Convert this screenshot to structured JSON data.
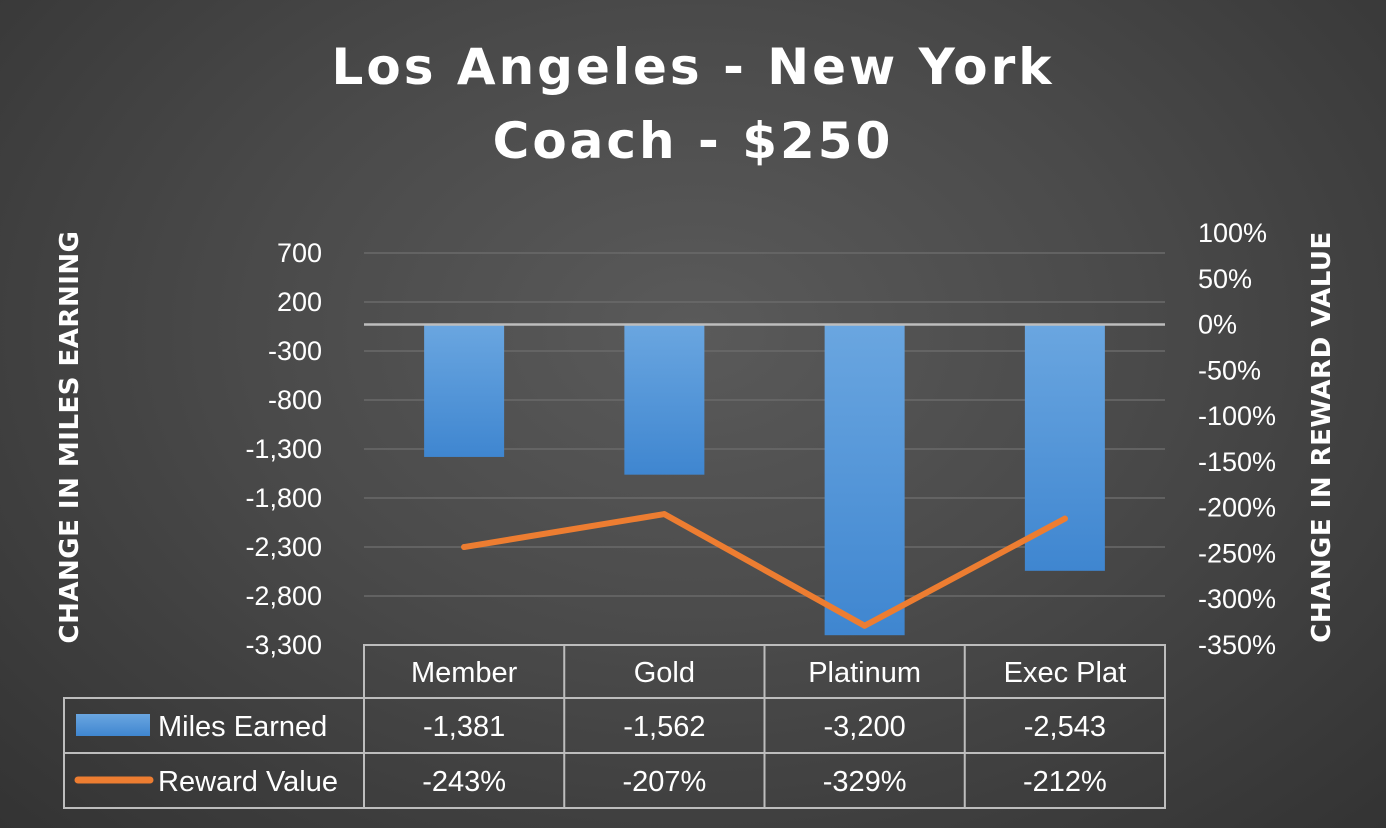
{
  "chart_data": {
    "type": "bar",
    "title_lines": [
      "Los Angeles - New York",
      "Coach - $250"
    ],
    "ylabel": "CHANGE IN MILES EARNING",
    "y2label": "CHANGE IN REWARD VALUE",
    "categories": [
      "Member",
      "Gold",
      "Platinum",
      "Exec Plat"
    ],
    "yticks": [
      "700",
      "200",
      "-300",
      "-800",
      "-1,300",
      "-1,800",
      "-2,300",
      "-2,800",
      "-3,300"
    ],
    "y2ticks": [
      "100%",
      "50%",
      "0%",
      "-50%",
      "-100%",
      "-150%",
      "-200%",
      "-250%",
      "-300%",
      "-350%"
    ],
    "ylim": [
      -3300,
      700
    ],
    "y2lim": [
      -350,
      100
    ],
    "grid": true,
    "series": [
      {
        "name": "Miles Earned",
        "type": "bar",
        "axis": "left",
        "color": "#4a8fd6",
        "values": [
          -1381,
          -1562,
          -3200,
          -2543
        ],
        "labels": [
          "-1,381",
          "-1,562",
          "-3,200",
          "-2,543"
        ]
      },
      {
        "name": "Reward Value",
        "type": "line",
        "axis": "right",
        "color": "#ed7d31",
        "values": [
          -243,
          -207,
          -329,
          -212
        ],
        "labels": [
          "-243%",
          "-207%",
          "-329%",
          "-212%"
        ]
      }
    ]
  }
}
